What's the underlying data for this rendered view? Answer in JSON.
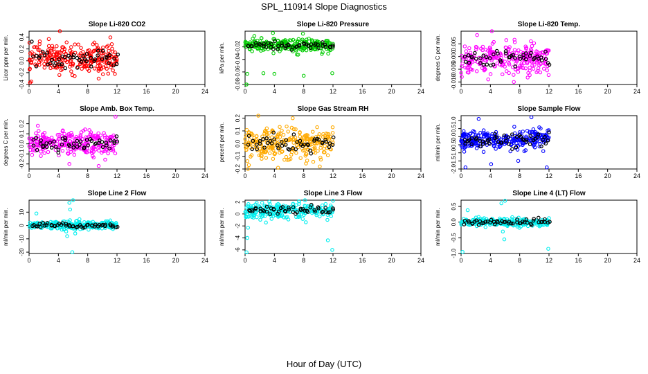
{
  "figure": {
    "title": "SPL_110914  Slope Diagnostics",
    "xlabel": "Hour of Day (UTC)"
  },
  "chart_data": [
    {
      "type": "scatter",
      "title": "Slope Li-820 CO2",
      "ylabel": "Licor ppm per min.",
      "color": "#ff0000",
      "xlim": [
        0,
        24
      ],
      "xticks": [
        0,
        4,
        8,
        12,
        16,
        20,
        24
      ],
      "ylim": [
        -0.4,
        0.5
      ],
      "yticks": [
        -0.4,
        -0.2,
        0.0,
        0.2,
        0.4
      ],
      "ytick_labels": [
        "-0.4",
        "-0.2",
        "0.0",
        "0.2",
        "0.4"
      ],
      "x_range": [
        0,
        12
      ],
      "center": 0.05,
      "spread": 0.12,
      "highlight": [
        0.5,
        1.0,
        1.5,
        2.0,
        2.5,
        3.0,
        3.5,
        4.0,
        4.5,
        5.0,
        5.5,
        6.0,
        6.5,
        7.0,
        7.5,
        8.0,
        8.5,
        9.0,
        9.5,
        10.0,
        10.5,
        11.0,
        11.5,
        12.0
      ],
      "outliers": [
        [
          4.2,
          0.5
        ],
        [
          0.3,
          -0.35
        ],
        [
          9.5,
          -0.3
        ]
      ]
    },
    {
      "type": "scatter",
      "title": "Slope Li-820 Pressure",
      "ylabel": "kPa per min.",
      "color": "#00cc00",
      "xlim": [
        0,
        24
      ],
      "xticks": [
        0,
        4,
        8,
        12,
        16,
        20,
        24
      ],
      "ylim": [
        -0.08,
        0.005
      ],
      "yticks": [
        -0.08,
        -0.06,
        -0.04,
        -0.02
      ],
      "ytick_labels": [
        "-0.08",
        "-0.06",
        "-0.04",
        "-0.02"
      ],
      "x_range": [
        0,
        12
      ],
      "center": -0.018,
      "spread": 0.005,
      "highlight": [
        0.5,
        1.0,
        1.5,
        2.0,
        2.5,
        3.0,
        3.5,
        4.0,
        4.5,
        5.0,
        5.5,
        6.0,
        6.5,
        7.0,
        7.5,
        8.0,
        8.5,
        9.0,
        9.5,
        10.0,
        10.5,
        11.0,
        11.5,
        12.0
      ],
      "outliers": [
        [
          0.2,
          -0.08
        ],
        [
          0.3,
          -0.063
        ],
        [
          2.5,
          -0.062
        ],
        [
          4.0,
          -0.063
        ],
        [
          8.0,
          -0.066
        ],
        [
          11.9,
          -0.062
        ],
        [
          3.8,
          0.002
        ],
        [
          7.9,
          0.001
        ]
      ]
    },
    {
      "type": "scatter",
      "title": "Slope Li-820 Temp.",
      "ylabel": "degrees C per min.",
      "color": "#ff00ff",
      "xlim": [
        0,
        24
      ],
      "xticks": [
        0,
        4,
        8,
        12,
        16,
        20,
        24
      ],
      "ylim": [
        -0.011,
        0.01
      ],
      "yticks": [
        -0.01,
        -0.005,
        0.0,
        0.005
      ],
      "ytick_labels": [
        "-0.010",
        "-0.005",
        "0.000",
        "0.005"
      ],
      "x_range": [
        0,
        12
      ],
      "center": -0.001,
      "spread": 0.003,
      "highlight": [
        0.5,
        1.0,
        1.5,
        2.0,
        2.5,
        3.0,
        3.5,
        4.0,
        4.5,
        5.0,
        5.5,
        6.0,
        6.5,
        7.0,
        7.5,
        8.0,
        8.5,
        9.0,
        9.5,
        10.0,
        10.5,
        11.0,
        11.5,
        12.0
      ],
      "outliers": [
        [
          4.2,
          0.01
        ],
        [
          0.1,
          -0.008
        ],
        [
          7.2,
          -0.01
        ],
        [
          3.7,
          -0.009
        ]
      ]
    },
    {
      "type": "scatter",
      "title": "Slope Amb. Box Temp.",
      "ylabel": "degrees C per min.",
      "color": "#ff00ff",
      "xlim": [
        0,
        24
      ],
      "xticks": [
        0,
        4,
        8,
        12,
        16,
        20,
        24
      ],
      "ylim": [
        -0.25,
        0.28
      ],
      "yticks": [
        -0.2,
        -0.1,
        0.0,
        0.1,
        0.2
      ],
      "ytick_labels": [
        "-0.2",
        "-0.1",
        "0.0",
        "0.1",
        "0.2"
      ],
      "x_range": [
        0,
        12
      ],
      "center": 0.0,
      "spread": 0.06,
      "highlight": [
        0.5,
        1.0,
        1.5,
        2.0,
        2.5,
        3.0,
        3.5,
        4.0,
        4.5,
        5.0,
        5.5,
        6.0,
        6.5,
        7.0,
        7.5,
        8.0,
        8.5,
        9.0,
        9.5,
        10.0,
        10.5,
        11.0,
        11.5,
        12.0
      ],
      "outliers": [
        [
          11.8,
          0.27
        ],
        [
          1.2,
          0.18
        ],
        [
          9.5,
          -0.22
        ],
        [
          5.5,
          -0.2
        ]
      ]
    },
    {
      "type": "scatter",
      "title": "Slope Gas Stream RH",
      "ylabel": "percent per min.",
      "color": "#ffaa00",
      "xlim": [
        0,
        24
      ],
      "xticks": [
        0,
        4,
        8,
        12,
        16,
        20,
        24
      ],
      "ylim": [
        -0.2,
        0.22
      ],
      "yticks": [
        -0.2,
        -0.1,
        0.0,
        0.1,
        0.2
      ],
      "ytick_labels": [
        "-0.2",
        "-0.1",
        "0.0",
        "0.1",
        "0.2"
      ],
      "x_range": [
        0,
        12
      ],
      "center": 0.0,
      "spread": 0.06,
      "highlight": [
        0.5,
        1.0,
        1.5,
        2.0,
        2.5,
        3.0,
        3.5,
        4.0,
        4.5,
        5.0,
        5.5,
        6.0,
        6.5,
        7.0,
        7.5,
        8.0,
        8.5,
        9.0,
        9.5,
        10.0,
        10.5,
        11.0,
        11.5,
        12.0
      ],
      "outliers": [
        [
          1.8,
          0.22
        ],
        [
          4.5,
          -0.19
        ],
        [
          6.5,
          0.2
        ],
        [
          10.2,
          -0.18
        ]
      ]
    },
    {
      "type": "scatter",
      "title": "Slope Sample Flow",
      "ylabel": "ml/min per min.",
      "color": "#0000ff",
      "xlim": [
        0,
        24
      ],
      "xticks": [
        0,
        4,
        8,
        12,
        16,
        20,
        24
      ],
      "ylim": [
        -2.0,
        1.3
      ],
      "yticks": [
        -2.0,
        -1.5,
        -1.0,
        -0.5,
        0.0,
        0.5,
        1.0
      ],
      "ytick_labels": [
        "-2.0",
        "-1.5",
        "-1.0",
        "-0.5",
        "0.0",
        "0.5",
        "1.0"
      ],
      "x_range": [
        0,
        12
      ],
      "center": -0.2,
      "spread": 0.3,
      "highlight": [
        0.5,
        1.0,
        1.5,
        2.0,
        2.5,
        3.0,
        3.5,
        4.0,
        4.5,
        5.0,
        5.5,
        6.0,
        6.5,
        7.0,
        7.5,
        8.0,
        8.5,
        9.0,
        9.5,
        10.0,
        10.5,
        11.0,
        11.5,
        12.0
      ],
      "outliers": [
        [
          0.6,
          -1.9
        ],
        [
          4.1,
          -1.7
        ],
        [
          7.8,
          -1.5
        ],
        [
          11.7,
          -1.9
        ],
        [
          9.6,
          1.2
        ],
        [
          2.4,
          1.1
        ]
      ]
    },
    {
      "type": "scatter",
      "title": "Slope Line 2 Flow",
      "ylabel": "ml/min per min.",
      "color": "#00eeee",
      "xlim": [
        0,
        24
      ],
      "xticks": [
        0,
        4,
        8,
        12,
        16,
        20,
        24
      ],
      "ylim": [
        -21,
        19
      ],
      "yticks": [
        -20,
        -10,
        0,
        10
      ],
      "ytick_labels": [
        "-20",
        "-10",
        "0",
        "10"
      ],
      "x_range": [
        0,
        12
      ],
      "center": 0.0,
      "spread": 1.5,
      "highlight": [
        0.5,
        1.0,
        1.5,
        2.0,
        2.5,
        3.0,
        3.5,
        4.0,
        4.5,
        5.0,
        5.5,
        6.0,
        6.5,
        7.0,
        7.5,
        8.0,
        8.5,
        9.0,
        9.5,
        10.0,
        10.5,
        11.0,
        11.5,
        12.0
      ],
      "outliers": [
        [
          5.5,
          17
        ],
        [
          6.0,
          19
        ],
        [
          5.9,
          -20
        ],
        [
          5.6,
          12
        ],
        [
          6.3,
          -6
        ],
        [
          5.2,
          -8
        ],
        [
          1.0,
          9
        ]
      ]
    },
    {
      "type": "scatter",
      "title": "Slope Line 3 Flow",
      "ylabel": "ml/min per min.",
      "color": "#00eeee",
      "xlim": [
        0,
        24
      ],
      "xticks": [
        0,
        4,
        8,
        12,
        16,
        20,
        24
      ],
      "ylim": [
        -6.6,
        2.3
      ],
      "yticks": [
        -6,
        -4,
        -2,
        0,
        2
      ],
      "ytick_labels": [
        "-6",
        "-4",
        "-2",
        "0",
        "2"
      ],
      "x_range": [
        0,
        12
      ],
      "center": 0.6,
      "spread": 0.6,
      "highlight": [
        0.5,
        1.0,
        1.5,
        2.0,
        2.5,
        3.0,
        3.5,
        4.0,
        4.5,
        5.0,
        5.5,
        6.0,
        6.5,
        7.0,
        7.5,
        8.0,
        8.5,
        9.0,
        9.5,
        10.0,
        10.5,
        11.0,
        11.5,
        12.0
      ],
      "outliers": [
        [
          0.2,
          -6.4
        ],
        [
          0.3,
          -4.0
        ],
        [
          11.3,
          -4.4
        ],
        [
          11.9,
          -6.0
        ],
        [
          12.0,
          2.2
        ],
        [
          0.4,
          -2.3
        ]
      ]
    },
    {
      "type": "scatter",
      "title": "Slope Line 4 (LT) Flow",
      "ylabel": "ml/min per min.",
      "color": "#00eeee",
      "xlim": [
        0,
        24
      ],
      "xticks": [
        0,
        4,
        8,
        12,
        16,
        20,
        24
      ],
      "ylim": [
        -1.0,
        0.7
      ],
      "yticks": [
        -1.0,
        -0.5,
        0.0,
        0.5
      ],
      "ytick_labels": [
        "-1.0",
        "-0.5",
        "0.0",
        "0.5"
      ],
      "x_range": [
        0,
        12
      ],
      "center": 0.0,
      "spread": 0.06,
      "highlight": [
        0.5,
        1.0,
        1.5,
        2.0,
        2.5,
        3.0,
        3.5,
        4.0,
        4.5,
        5.0,
        5.5,
        6.0,
        6.5,
        7.0,
        7.5,
        8.0,
        8.5,
        9.0,
        9.5,
        10.0,
        10.5,
        11.0,
        11.5,
        12.0
      ],
      "outliers": [
        [
          0.2,
          -0.95
        ],
        [
          5.5,
          0.6
        ],
        [
          6.0,
          0.68
        ],
        [
          5.9,
          -0.55
        ],
        [
          11.9,
          -0.85
        ],
        [
          0.9,
          0.38
        ],
        [
          5.7,
          -0.3
        ]
      ]
    }
  ]
}
